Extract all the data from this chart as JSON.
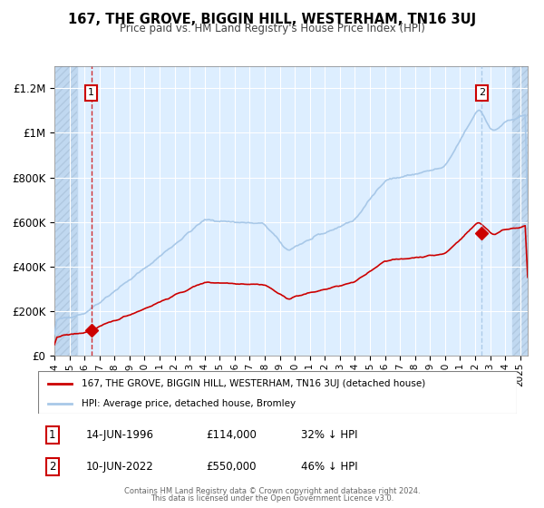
{
  "title": "167, THE GROVE, BIGGIN HILL, WESTERHAM, TN16 3UJ",
  "subtitle": "Price paid vs. HM Land Registry's House Price Index (HPI)",
  "legend_line1": "167, THE GROVE, BIGGIN HILL, WESTERHAM, TN16 3UJ (detached house)",
  "legend_line2": "HPI: Average price, detached house, Bromley",
  "annotation1_label": "1",
  "annotation1_date": "14-JUN-1996",
  "annotation1_price": "£114,000",
  "annotation1_hpi": "32% ↓ HPI",
  "annotation1_year": 1996.45,
  "annotation1_value": 114000,
  "annotation2_label": "2",
  "annotation2_date": "10-JUN-2022",
  "annotation2_price": "£550,000",
  "annotation2_hpi": "46% ↓ HPI",
  "annotation2_year": 2022.45,
  "annotation2_value": 550000,
  "footer_line1": "Contains HM Land Registry data © Crown copyright and database right 2024.",
  "footer_line2": "This data is licensed under the Open Government Licence v3.0.",
  "xlim": [
    1994.0,
    2025.5
  ],
  "ylim": [
    0,
    1300000
  ],
  "yticks": [
    0,
    200000,
    400000,
    600000,
    800000,
    1000000,
    1200000
  ],
  "ytick_labels": [
    "£0",
    "£200K",
    "£400K",
    "£600K",
    "£800K",
    "£1M",
    "£1.2M"
  ],
  "xticks": [
    1994,
    1995,
    1996,
    1997,
    1998,
    1999,
    2000,
    2001,
    2002,
    2003,
    2004,
    2005,
    2006,
    2007,
    2008,
    2009,
    2010,
    2011,
    2012,
    2013,
    2014,
    2015,
    2016,
    2017,
    2018,
    2019,
    2020,
    2021,
    2022,
    2023,
    2024,
    2025
  ],
  "hpi_color": "#a8c8e8",
  "price_color": "#cc0000",
  "bg_color": "#ddeeff",
  "grid_color": "#ffffff",
  "hatch_color": "#c0d8f0",
  "hatch_edge_color": "#b0c8e0",
  "hatch_left_end": 1995.5,
  "hatch_right_start": 2024.5
}
